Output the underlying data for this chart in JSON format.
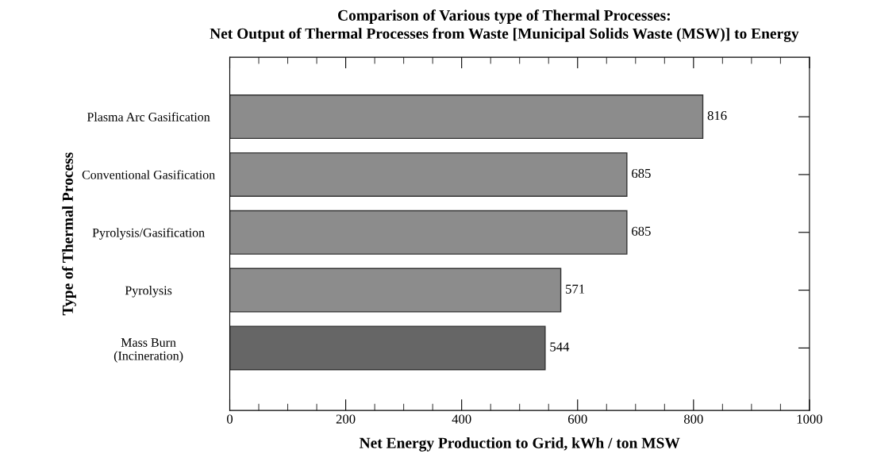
{
  "chart_data": {
    "type": "bar",
    "orientation": "horizontal",
    "title": "Comparison of Various type of Thermal Processes:",
    "subtitle": "Net Output of Thermal Processes from Waste [Municipal Solids Waste (MSW)] to Energy",
    "xlabel": "Net Energy Production to Grid, kWh / ton MSW",
    "ylabel": "Type of Thermal Process",
    "categories": [
      "Plasma Arc Gasification",
      "Conventional Gasification",
      "Pyrolysis/Gasification",
      "Pyrolysis",
      "Mass Burn\n(Incineration)"
    ],
    "values": [
      816,
      685,
      685,
      571,
      544
    ],
    "colors": [
      "#8c8c8c",
      "#8c8c8c",
      "#8c8c8c",
      "#8c8c8c",
      "#666666"
    ],
    "xlim": [
      0,
      1000
    ],
    "xticks": [
      0,
      200,
      400,
      600,
      800,
      1000
    ],
    "data_labels": true,
    "grid": false,
    "legend": false
  }
}
